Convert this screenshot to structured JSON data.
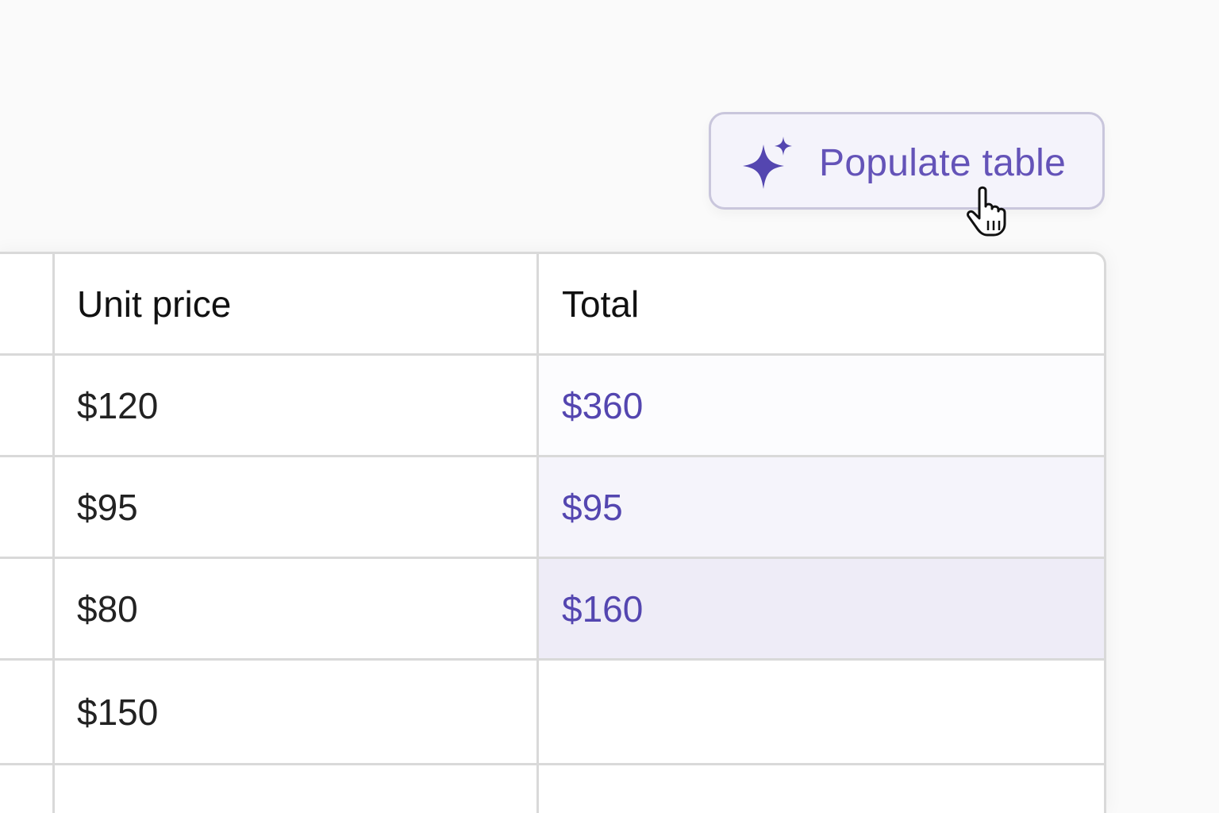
{
  "toolbar": {
    "populate_label": "Populate table",
    "icon": "sparkles-icon",
    "accent": "#5446b0"
  },
  "table": {
    "headers": [
      "",
      "Unit price",
      "Total"
    ],
    "rows": [
      {
        "unit_price": "$120",
        "total": "$360",
        "highlight": "#fcfcfe"
      },
      {
        "unit_price": "$95",
        "total": "$95",
        "highlight": "#f5f4fb"
      },
      {
        "unit_price": "$80",
        "total": "$160",
        "highlight": "#eeecf7"
      },
      {
        "unit_price": "$150",
        "total": "",
        "highlight": "#ffffff"
      },
      {
        "unit_price": "",
        "total": "",
        "highlight": "#ffffff"
      }
    ]
  }
}
